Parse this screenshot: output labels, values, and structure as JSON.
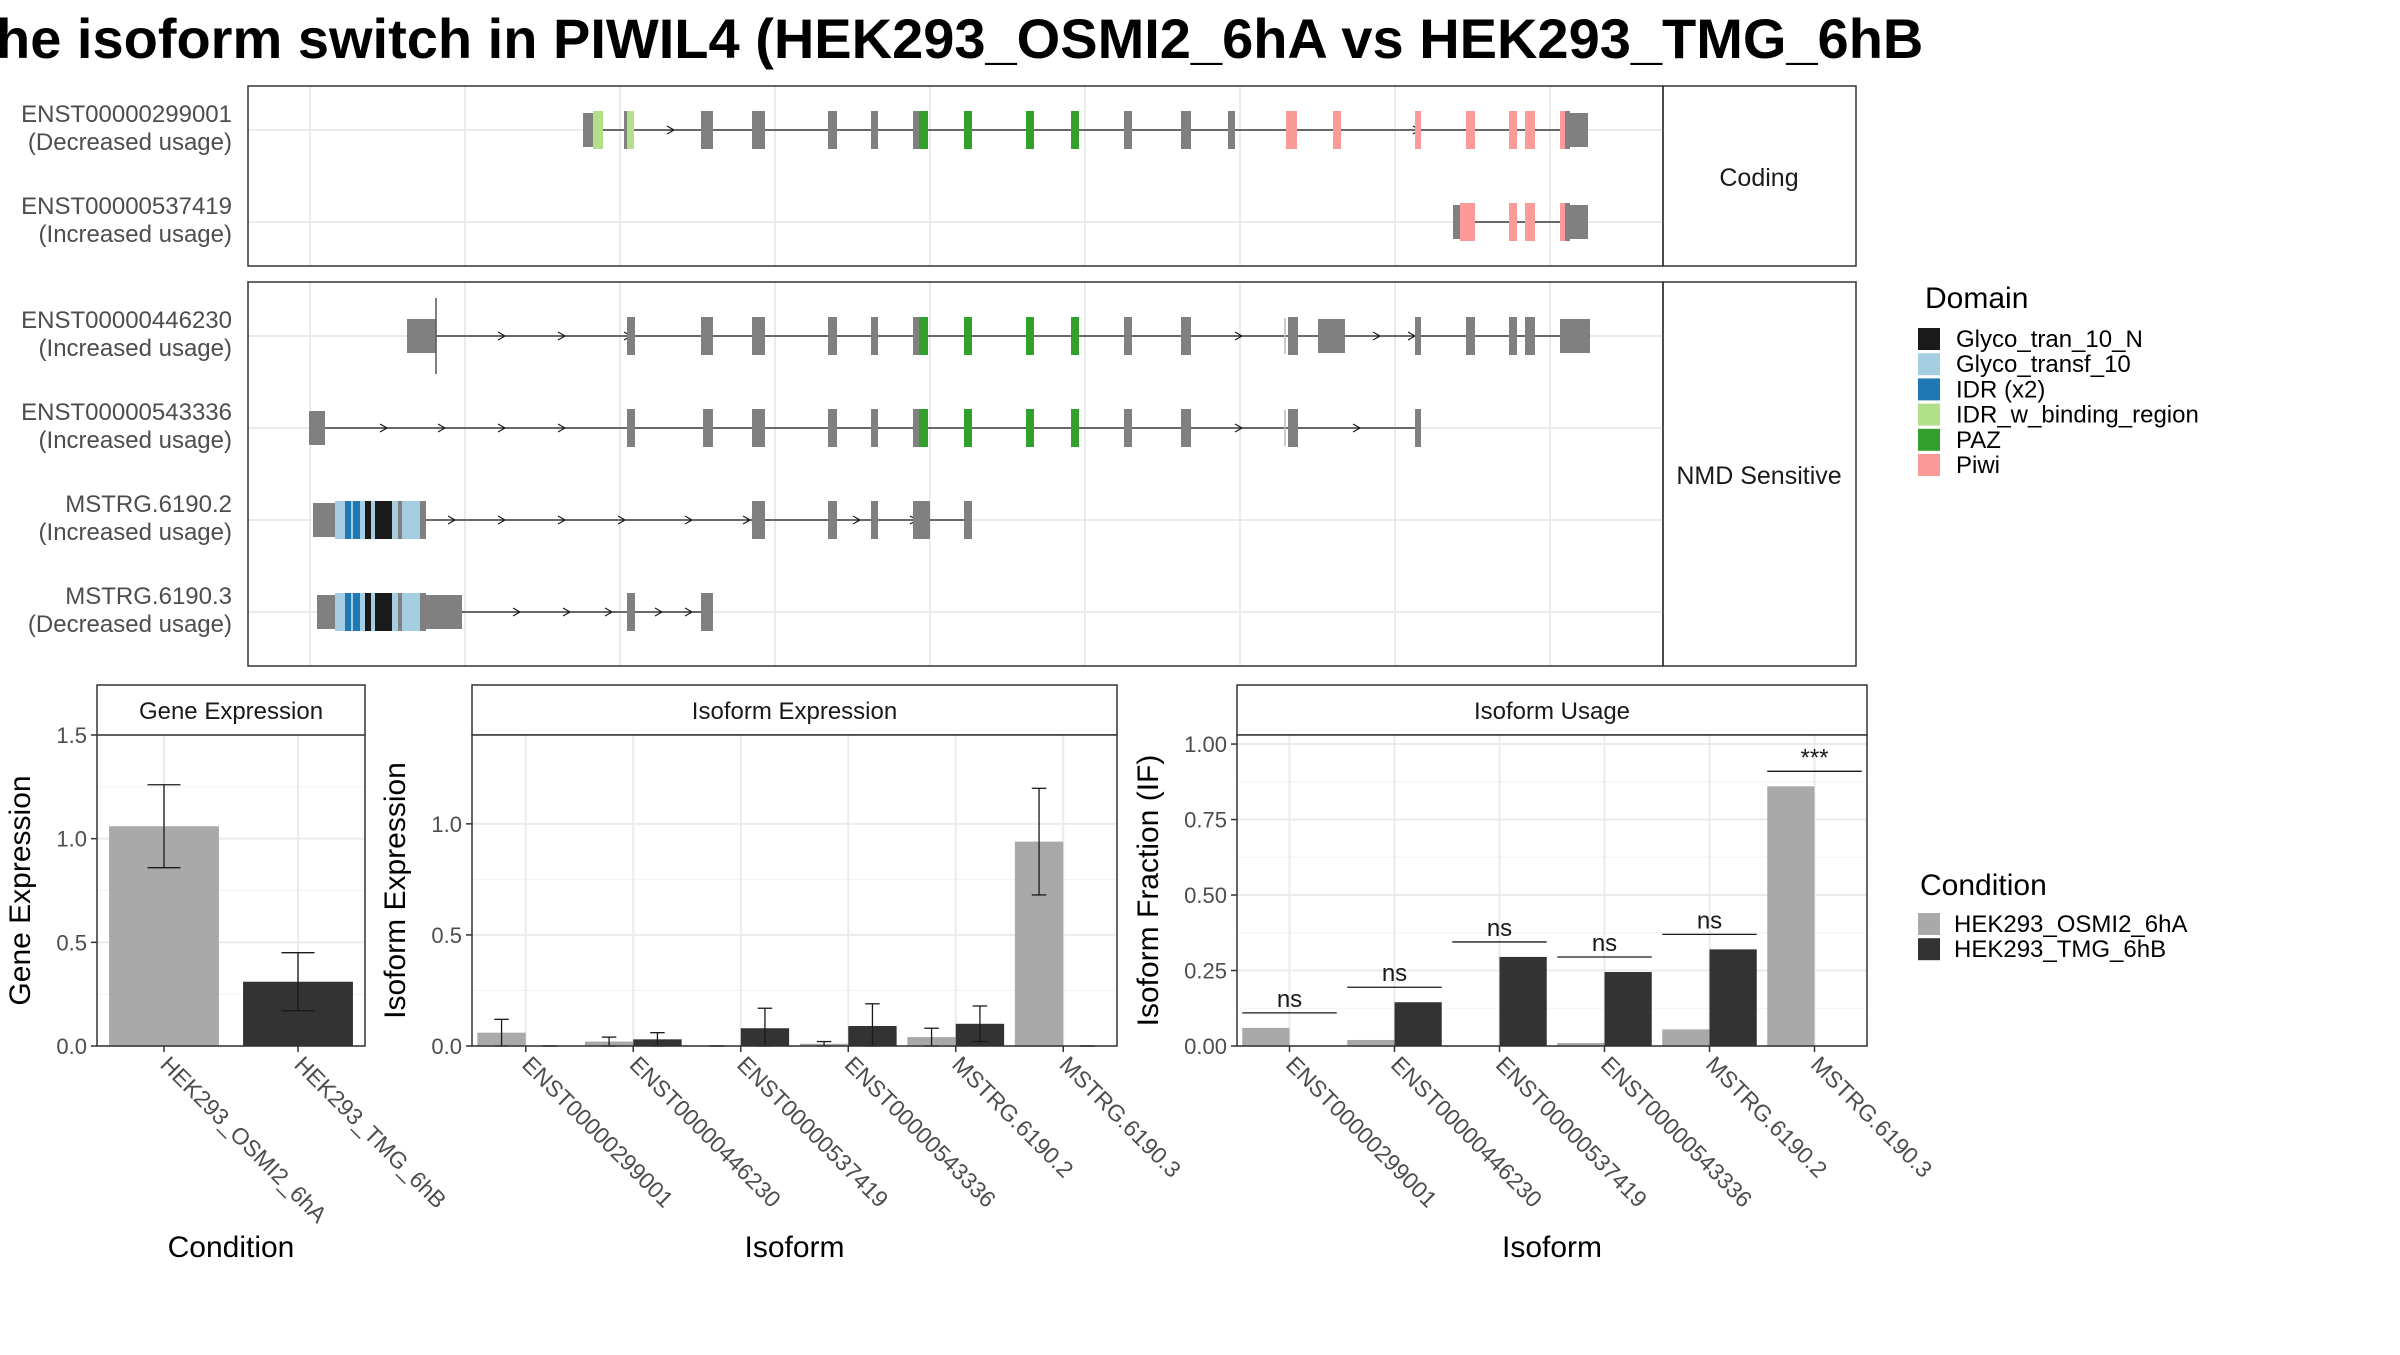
{
  "title": "he isoform switch in PIWIL4 (HEK293_OSMI2_6hA vs HEK293_TMG_6hB",
  "colors": {
    "Glyco_tran_10_N": "#1a1a1a",
    "Glyco_transf_10": "#a6cee3",
    "IDR (x2)": "#1f78b4",
    "IDR_w_binding_region": "#b2df8a",
    "PAZ": "#33a02c",
    "Piwi": "#fb9a99",
    "exon": "#808080",
    "cond_A": "#a9a9a9",
    "cond_B": "#333333"
  },
  "structure": {
    "coding_label": "Coding",
    "nmd_label": "NMD Sensitive",
    "isoforms": [
      {
        "id": "ENST00000299001",
        "usage": "(Decreased usage)",
        "group": "Coding"
      },
      {
        "id": "ENST00000537419",
        "usage": "(Increased usage)",
        "group": "Coding"
      },
      {
        "id": "ENST00000446230",
        "usage": "(Increased usage)",
        "group": "NMD Sensitive"
      },
      {
        "id": "ENST00000543336",
        "usage": "(Increased usage)",
        "group": "NMD Sensitive"
      },
      {
        "id": "MSTRG.6190.2",
        "usage": "(Increased usage)",
        "group": "NMD Sensitive"
      },
      {
        "id": "MSTRG.6190.3",
        "usage": "(Decreased usage)",
        "group": "NMD Sensitive"
      }
    ]
  },
  "legend_domain": {
    "title": "Domain",
    "items": [
      "Glyco_tran_10_N",
      "Glyco_transf_10",
      "IDR (x2)",
      "IDR_w_binding_region",
      "PAZ",
      "Piwi"
    ]
  },
  "legend_condition": {
    "title": "Condition",
    "items": [
      "HEK293_OSMI2_6hA",
      "HEK293_TMG_6hB"
    ]
  },
  "chart_data": [
    {
      "type": "bar",
      "title": "Gene Expression",
      "xlabel": "Condition",
      "ylabel": "Gene Expression",
      "categories": [
        "HEK293_OSMI2_6hA",
        "HEK293_TMG_6hB"
      ],
      "values": [
        1.06,
        0.31
      ],
      "errors": [
        0.2,
        0.14
      ],
      "ylim": [
        0,
        1.5
      ],
      "yticks": [
        "0.0",
        "0.5",
        "1.0",
        "1.5"
      ]
    },
    {
      "type": "bar",
      "title": "Isoform Expression",
      "xlabel": "Isoform",
      "ylabel": "Isoform Expression",
      "categories": [
        "ENST00000299001",
        "ENST00000446230",
        "ENST00000537419",
        "ENST00000543336",
        "MSTRG.6190.2",
        "MSTRG.6190.3"
      ],
      "series": [
        {
          "name": "HEK293_OSMI2_6hA",
          "values": [
            0.06,
            0.02,
            0.0,
            0.01,
            0.04,
            0.92
          ],
          "errors": [
            0.06,
            0.02,
            0.0,
            0.01,
            0.04,
            0.24
          ]
        },
        {
          "name": "HEK293_TMG_6hB",
          "values": [
            0.0,
            0.03,
            0.08,
            0.09,
            0.1,
            0.0
          ],
          "errors": [
            0.0,
            0.03,
            0.09,
            0.1,
            0.08,
            0.0
          ]
        }
      ],
      "ylim": [
        0,
        1.4
      ],
      "yticks": [
        "0.0",
        "0.5",
        "1.0"
      ]
    },
    {
      "type": "bar",
      "title": "Isoform Usage",
      "xlabel": "Isoform",
      "ylabel": "Isoform Fraction (IF)",
      "categories": [
        "ENST00000299001",
        "ENST00000446230",
        "ENST00000537419",
        "ENST00000543336",
        "MSTRG.6190.2",
        "MSTRG.6190.3"
      ],
      "series": [
        {
          "name": "HEK293_OSMI2_6hA",
          "values": [
            0.06,
            0.02,
            0.0,
            0.01,
            0.055,
            0.86
          ]
        },
        {
          "name": "HEK293_TMG_6hB",
          "values": [
            0.0,
            0.145,
            0.295,
            0.245,
            0.32,
            0.0
          ]
        }
      ],
      "significance": [
        "ns",
        "ns",
        "ns",
        "ns",
        "ns",
        "***"
      ],
      "ylim": [
        0,
        1.03
      ],
      "yticks": [
        "0.00",
        "0.25",
        "0.50",
        "0.75",
        "1.00"
      ]
    }
  ]
}
